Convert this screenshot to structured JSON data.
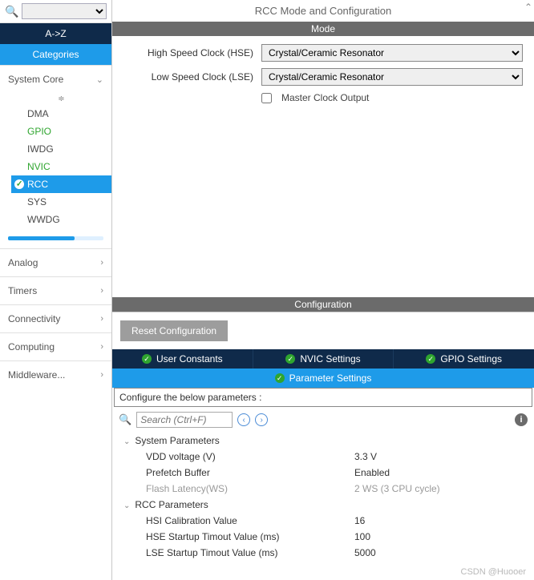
{
  "colors": {
    "accent": "#1e9be9",
    "navy": "#0f2a4a",
    "band": "#6b6b6b",
    "green": "#2fa52f"
  },
  "sidebar": {
    "search_placeholder": "",
    "tab_az": "A->Z",
    "tab_categories": "Categories",
    "sections": [
      {
        "label": "System Core",
        "expanded": true,
        "items": [
          {
            "label": "DMA",
            "green": false,
            "selected": false
          },
          {
            "label": "GPIO",
            "green": true,
            "selected": false
          },
          {
            "label": "IWDG",
            "green": false,
            "selected": false
          },
          {
            "label": "NVIC",
            "green": true,
            "selected": false
          },
          {
            "label": "RCC",
            "green": false,
            "selected": true
          },
          {
            "label": "SYS",
            "green": false,
            "selected": false
          },
          {
            "label": "WWDG",
            "green": false,
            "selected": false
          }
        ]
      },
      {
        "label": "Analog",
        "expanded": false
      },
      {
        "label": "Timers",
        "expanded": false
      },
      {
        "label": "Connectivity",
        "expanded": false
      },
      {
        "label": "Computing",
        "expanded": false
      },
      {
        "label": "Middleware...",
        "expanded": false
      }
    ]
  },
  "main": {
    "title": "RCC Mode and Configuration",
    "mode": {
      "band": "Mode",
      "hse_label": "High Speed Clock (HSE)",
      "hse_value": "Crystal/Ceramic Resonator",
      "lse_label": "Low Speed Clock (LSE)",
      "lse_value": "Crystal/Ceramic Resonator",
      "master_clock_label": "Master Clock Output",
      "master_clock_checked": false
    },
    "config": {
      "band": "Configuration",
      "reset_btn": "Reset Configuration",
      "tabs_dark": [
        "User Constants",
        "NVIC Settings",
        "GPIO Settings"
      ],
      "tab_active": "Parameter Settings",
      "desc": "Configure the below parameters :",
      "search_placeholder": "Search (Ctrl+F)",
      "groups": [
        {
          "label": "System Parameters",
          "rows": [
            {
              "k": "VDD voltage (V)",
              "v": "3.3 V",
              "dim": false
            },
            {
              "k": "Prefetch Buffer",
              "v": "Enabled",
              "dim": false
            },
            {
              "k": "Flash Latency(WS)",
              "v": "2 WS (3 CPU cycle)",
              "dim": true
            }
          ]
        },
        {
          "label": "RCC Parameters",
          "rows": [
            {
              "k": "HSI Calibration Value",
              "v": "16",
              "dim": false
            },
            {
              "k": "HSE Startup Timout Value (ms)",
              "v": "100",
              "dim": false
            },
            {
              "k": "LSE Startup Timout Value (ms)",
              "v": "5000",
              "dim": false
            }
          ]
        }
      ]
    }
  },
  "watermark": "CSDN @Huooer"
}
